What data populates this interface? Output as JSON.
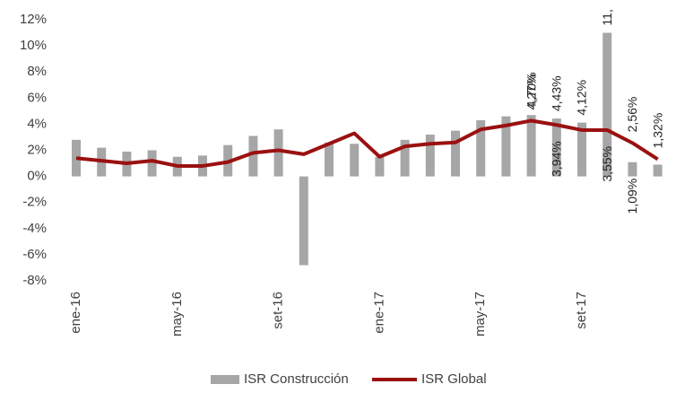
{
  "chart_data": {
    "type": "bar_line",
    "categories": [
      "ene-16",
      null,
      null,
      null,
      "may-16",
      null,
      null,
      null,
      "set-16",
      null,
      null,
      null,
      "ene-17",
      null,
      null,
      null,
      "may-17",
      null,
      null,
      null,
      "set-17",
      null,
      null,
      null
    ],
    "series": [
      {
        "name": "ISR Construcción",
        "type": "bar",
        "color": "#a6a6a6",
        "values": [
          2.8,
          2.2,
          1.9,
          2.0,
          1.5,
          1.6,
          2.4,
          3.1,
          3.6,
          -6.8,
          2.6,
          2.5,
          1.5,
          2.8,
          3.2,
          3.5,
          4.3,
          4.6,
          4.7,
          4.43,
          4.12,
          11,
          1.09,
          0.9
        ],
        "value_labels": [
          null,
          null,
          null,
          null,
          null,
          null,
          null,
          null,
          null,
          null,
          null,
          null,
          null,
          null,
          null,
          null,
          null,
          null,
          "4,70%",
          "4,43%",
          "4,12%",
          "11,",
          "1,09%",
          null
        ]
      },
      {
        "name": "ISR Global",
        "type": "line",
        "color": "#9b1010",
        "values": [
          1.4,
          1.2,
          1.0,
          1.2,
          0.8,
          0.8,
          1.1,
          1.8,
          2.0,
          1.7,
          2.5,
          3.3,
          1.5,
          2.3,
          2.5,
          2.6,
          3.6,
          3.9,
          4.27,
          3.94,
          3.55,
          3.55,
          2.56,
          1.32
        ],
        "value_labels": [
          null,
          null,
          null,
          null,
          null,
          null,
          null,
          null,
          null,
          null,
          null,
          null,
          null,
          null,
          null,
          null,
          null,
          null,
          "4,27%",
          "3,94%",
          null,
          "3,55%",
          "2,56%",
          "1,32%"
        ]
      }
    ],
    "ylim": [
      -8,
      12
    ],
    "yticks": [
      {
        "value": -8,
        "label": "-8%"
      },
      {
        "value": -6,
        "label": "-6%"
      },
      {
        "value": -4,
        "label": "-4%"
      },
      {
        "value": -2,
        "label": "-2%"
      },
      {
        "value": 0,
        "label": "0%"
      },
      {
        "value": 2,
        "label": "2%"
      },
      {
        "value": 4,
        "label": "4%"
      },
      {
        "value": 6,
        "label": "6%"
      },
      {
        "value": 8,
        "label": "8%"
      },
      {
        "value": 10,
        "label": "10%"
      },
      {
        "value": 12,
        "label": "12%"
      }
    ],
    "legend": "bottom"
  }
}
